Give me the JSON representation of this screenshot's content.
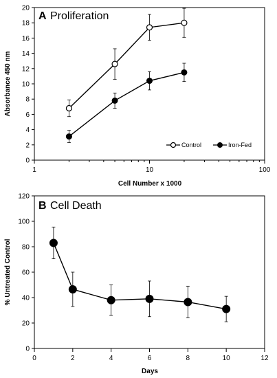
{
  "chart_data": [
    {
      "type": "line",
      "panel_letter": "A",
      "title": "Proliferation",
      "xlabel": "Cell Number x 1000",
      "ylabel": "Absorbance 450 nm",
      "x_scale": "log",
      "xlim": [
        1,
        100
      ],
      "ylim": [
        0,
        20
      ],
      "x_ticks": [
        1,
        10,
        100
      ],
      "x_tick_labels": [
        "1",
        "10",
        "100"
      ],
      "y_ticks": [
        0,
        2,
        4,
        6,
        8,
        10,
        12,
        14,
        16,
        18,
        20
      ],
      "y_tick_labels": [
        "0",
        "2",
        "4",
        "6",
        "8",
        "10",
        "12",
        "14",
        "16",
        "18",
        "20"
      ],
      "grid": false,
      "legend_position": "bottom-right",
      "series": [
        {
          "name": "Control",
          "marker": "open-circle",
          "x": [
            2,
            5,
            10,
            20
          ],
          "y": [
            6.8,
            12.6,
            17.4,
            18.0
          ],
          "error": [
            1.1,
            2.0,
            1.7,
            1.9
          ]
        },
        {
          "name": "Iron-Fed",
          "marker": "filled-circle",
          "x": [
            2,
            5,
            10,
            20
          ],
          "y": [
            3.1,
            7.8,
            10.4,
            11.5
          ],
          "error": [
            0.8,
            1.0,
            1.2,
            1.2
          ]
        }
      ]
    },
    {
      "type": "line",
      "panel_letter": "B",
      "title": "Cell Death",
      "xlabel": "Days",
      "ylabel": "% Untreated Control",
      "x_scale": "linear",
      "xlim": [
        0,
        12
      ],
      "ylim": [
        0,
        120
      ],
      "x_ticks": [
        0,
        2,
        4,
        6,
        8,
        10,
        12
      ],
      "x_tick_labels": [
        "0",
        "2",
        "4",
        "6",
        "8",
        "10",
        "12"
      ],
      "y_ticks": [
        0,
        20,
        40,
        60,
        80,
        100,
        120
      ],
      "y_tick_labels": [
        "0",
        "20",
        "40",
        "60",
        "80",
        "100",
        "120"
      ],
      "grid": false,
      "series": [
        {
          "marker": "filled-circle",
          "x": [
            1,
            2,
            4,
            6,
            8,
            10
          ],
          "y": [
            83,
            46.5,
            38,
            39,
            36.5,
            31
          ],
          "error": [
            12.5,
            13.5,
            12,
            14,
            12.5,
            10
          ]
        }
      ]
    }
  ]
}
